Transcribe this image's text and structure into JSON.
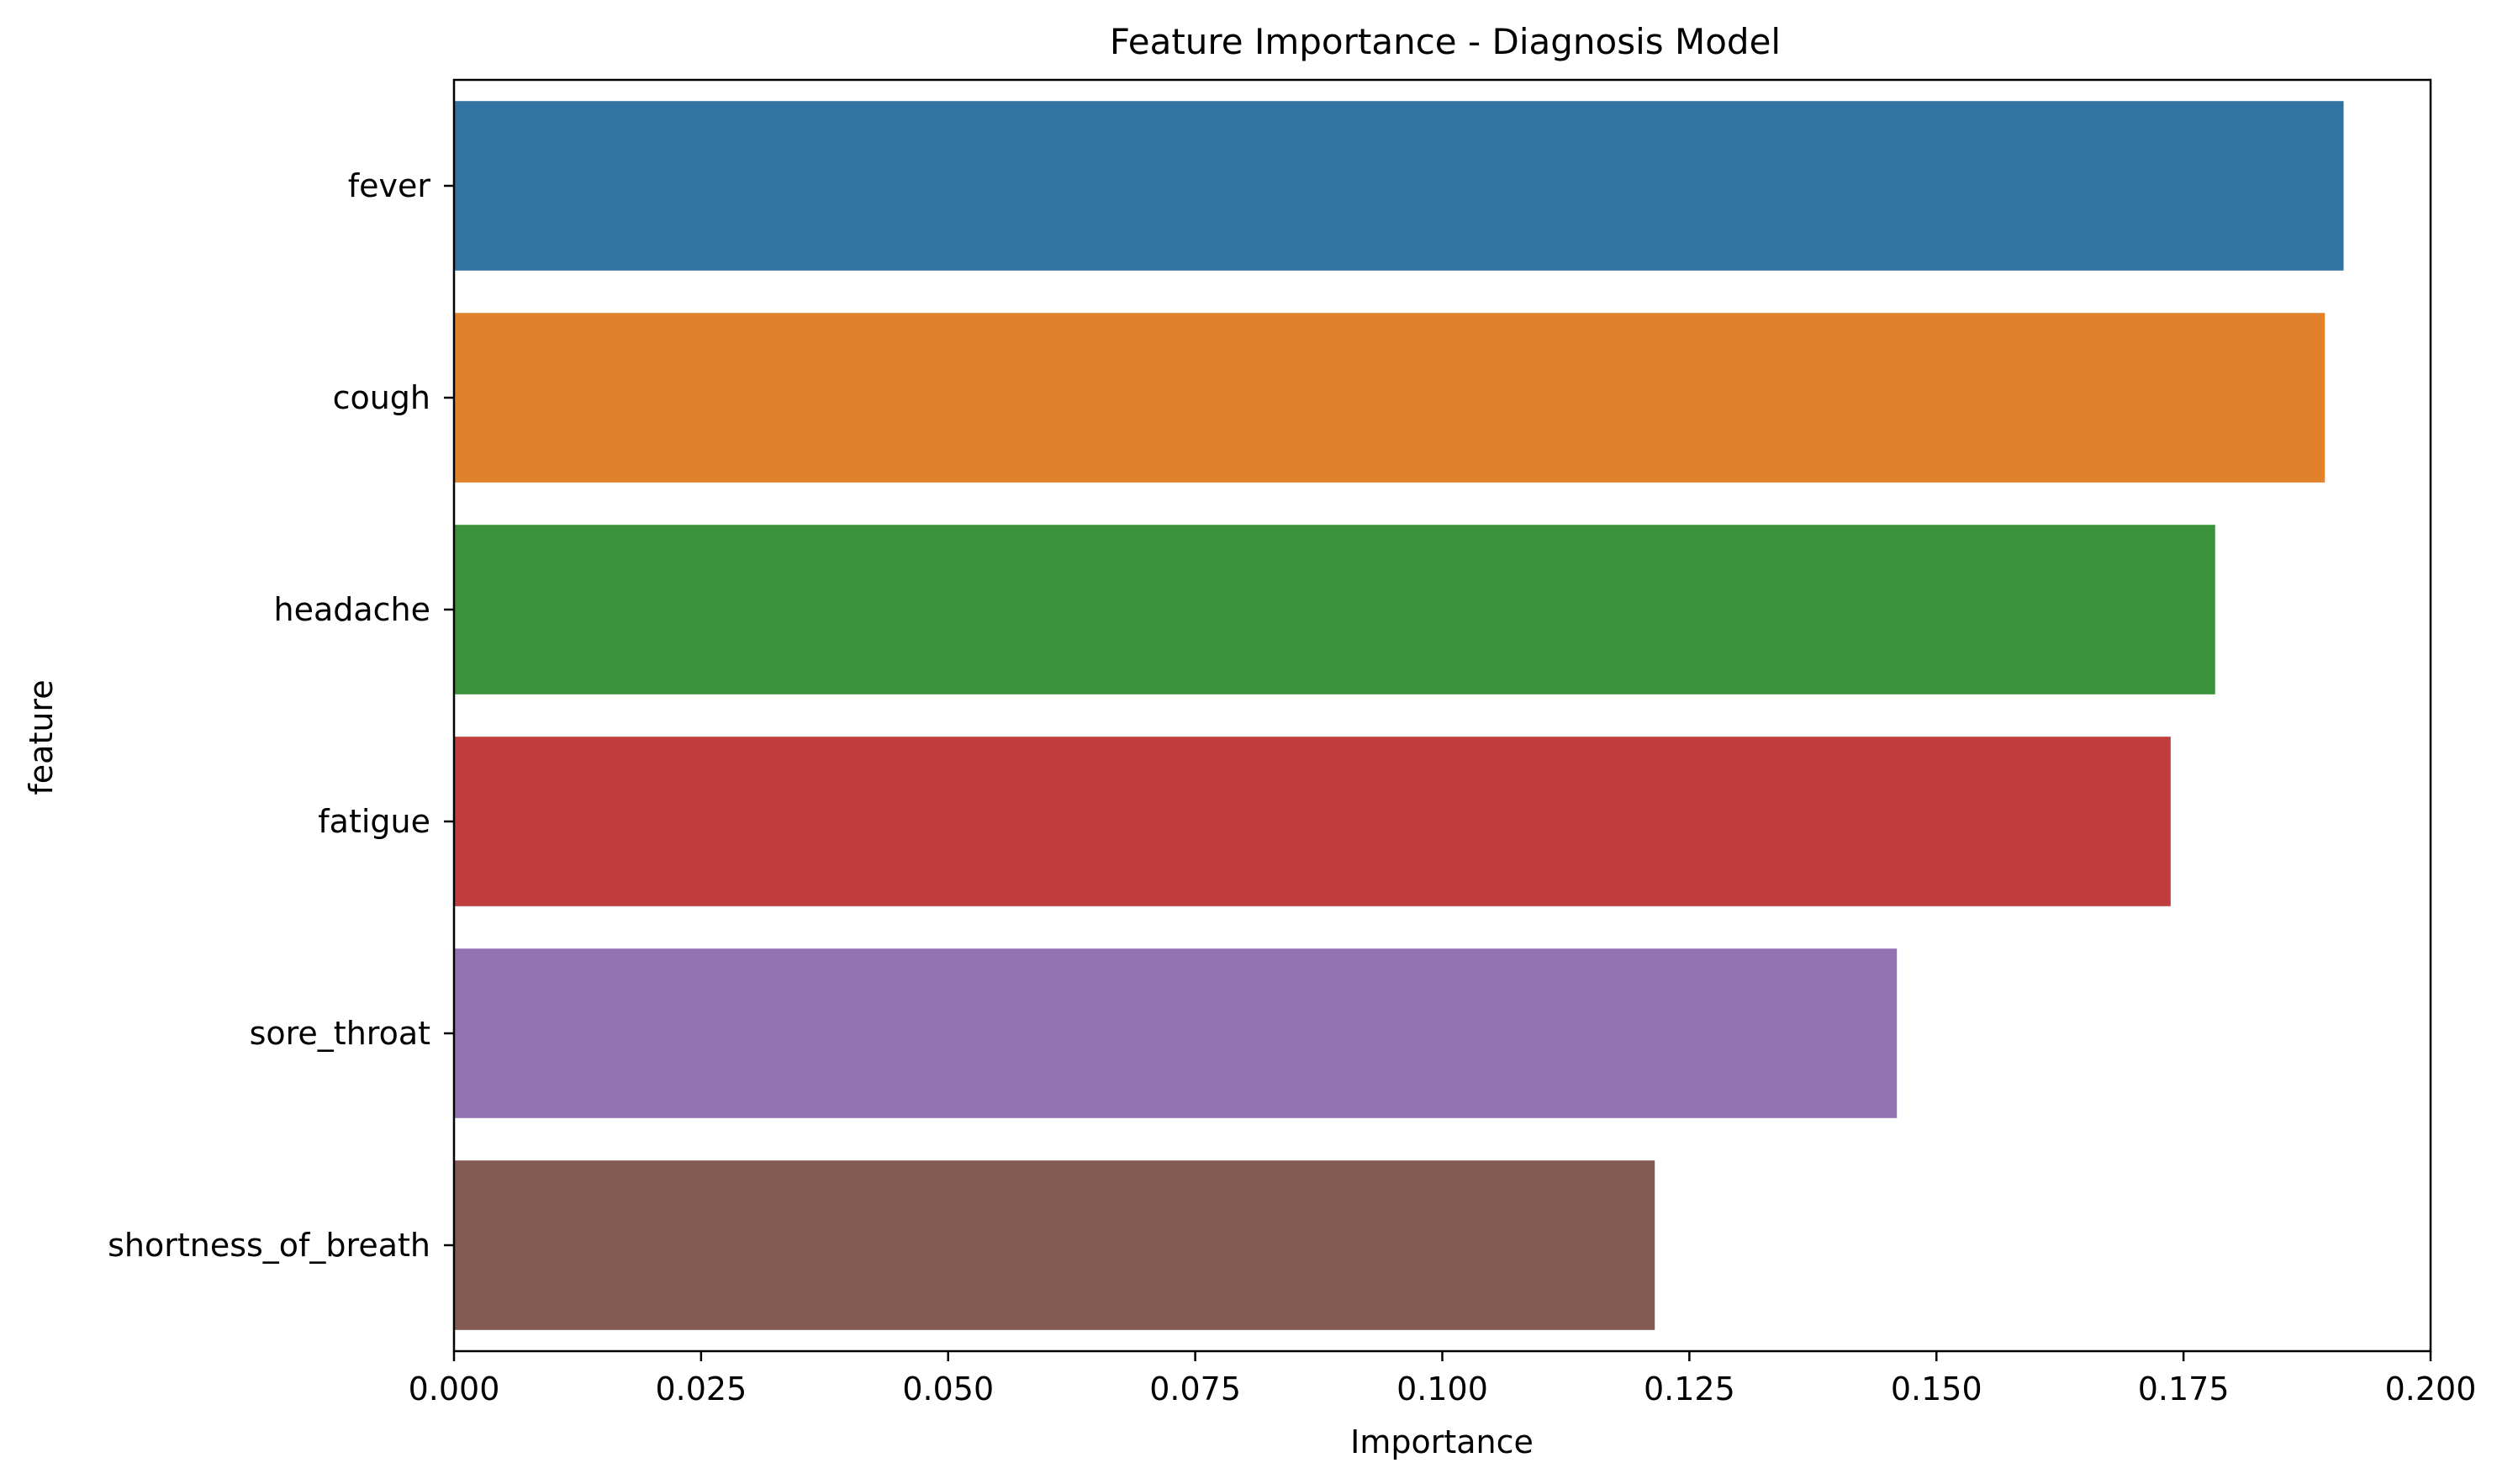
{
  "chart_data": {
    "type": "bar",
    "orientation": "horizontal",
    "title": "Feature Importance - Diagnosis Model",
    "xlabel": "Importance",
    "ylabel": "feature",
    "xlim": [
      0,
      0.2
    ],
    "grid": false,
    "categories": [
      "fever",
      "cough",
      "headache",
      "fatigue",
      "sore_throat",
      "shortness_of_breath"
    ],
    "values": [
      0.1912,
      0.1893,
      0.1782,
      0.1737,
      0.146,
      0.1215
    ],
    "colors": [
      "#3274a1",
      "#e1812c",
      "#3a923a",
      "#c03d3e",
      "#9372b2",
      "#845b53"
    ],
    "x_ticks": [
      0.0,
      0.025,
      0.05,
      0.075,
      0.1,
      0.125,
      0.15,
      0.175,
      0.2
    ],
    "x_tick_labels": [
      "0.000",
      "0.025",
      "0.050",
      "0.075",
      "0.100",
      "0.125",
      "0.150",
      "0.175",
      "0.200"
    ]
  }
}
